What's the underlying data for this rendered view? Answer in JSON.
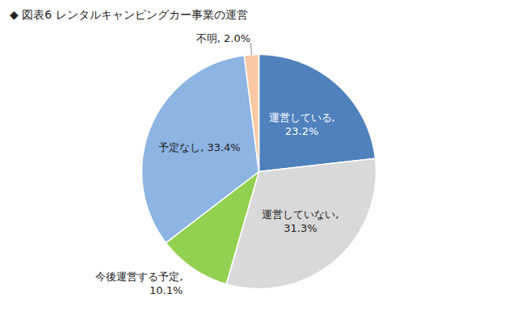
{
  "chart_data": {
    "type": "pie",
    "title": "◆ 図表6 レンタルキャンピングカー事業の運営",
    "categories": [
      "運営している",
      "運営していない",
      "今後運営する予定",
      "予定なし",
      "不明"
    ],
    "values": [
      23.2,
      31.3,
      10.1,
      33.4,
      2.0
    ],
    "value_labels": [
      "運営している,\n23.2%",
      "運営していない,\n31.3%",
      "今後運営する予定,\n10.1%",
      "予定なし, 33.4%",
      "不明, 2.0%"
    ],
    "colors": [
      "#4f81bd",
      "#d9d9d9",
      "#92d050",
      "#8db4e2",
      "#fac8a4"
    ],
    "data_labels": true
  }
}
